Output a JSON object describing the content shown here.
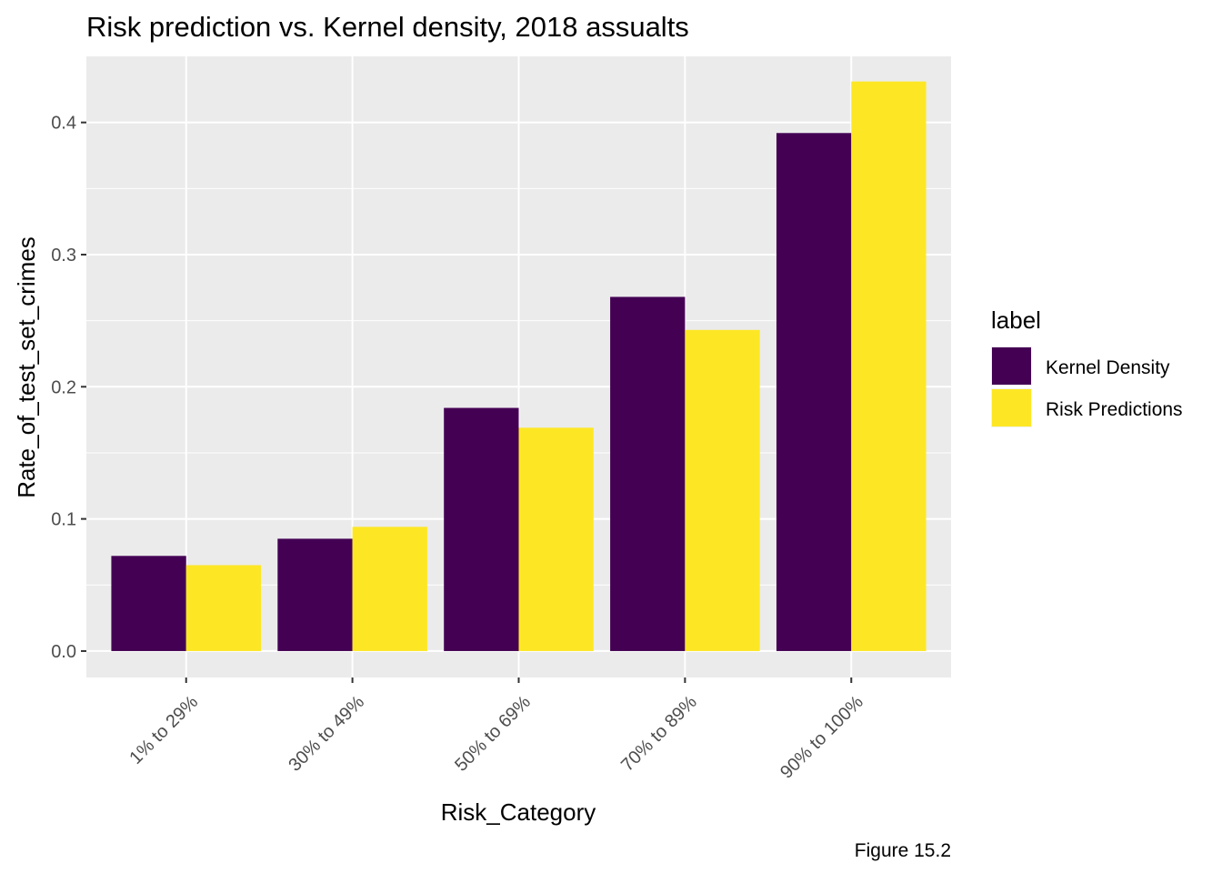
{
  "chart_data": {
    "type": "bar",
    "title": "Risk prediction vs. Kernel density, 2018 assualts",
    "xlabel": "Risk_Category",
    "ylabel": "Rate_of_test_set_crimes",
    "caption": "Figure 15.2",
    "categories": [
      "1% to 29%",
      "30% to 49%",
      "50% to 69%",
      "70% to 89%",
      "90% to 100%"
    ],
    "ylim": [
      -0.02,
      0.45
    ],
    "yticks": [
      "0.0",
      "0.1",
      "0.2",
      "0.3",
      "0.4"
    ],
    "grid": true,
    "legend": {
      "title": "label",
      "placement": "right"
    },
    "series": [
      {
        "name": "Kernel Density",
        "color": "#440154",
        "values": [
          0.072,
          0.085,
          0.184,
          0.268,
          0.392
        ]
      },
      {
        "name": "Risk Predictions",
        "color": "#FDE725",
        "values": [
          0.065,
          0.094,
          0.169,
          0.243,
          0.431
        ]
      }
    ],
    "panel_background": "#EBEBEB",
    "gridline_color": "#FFFFFF"
  }
}
